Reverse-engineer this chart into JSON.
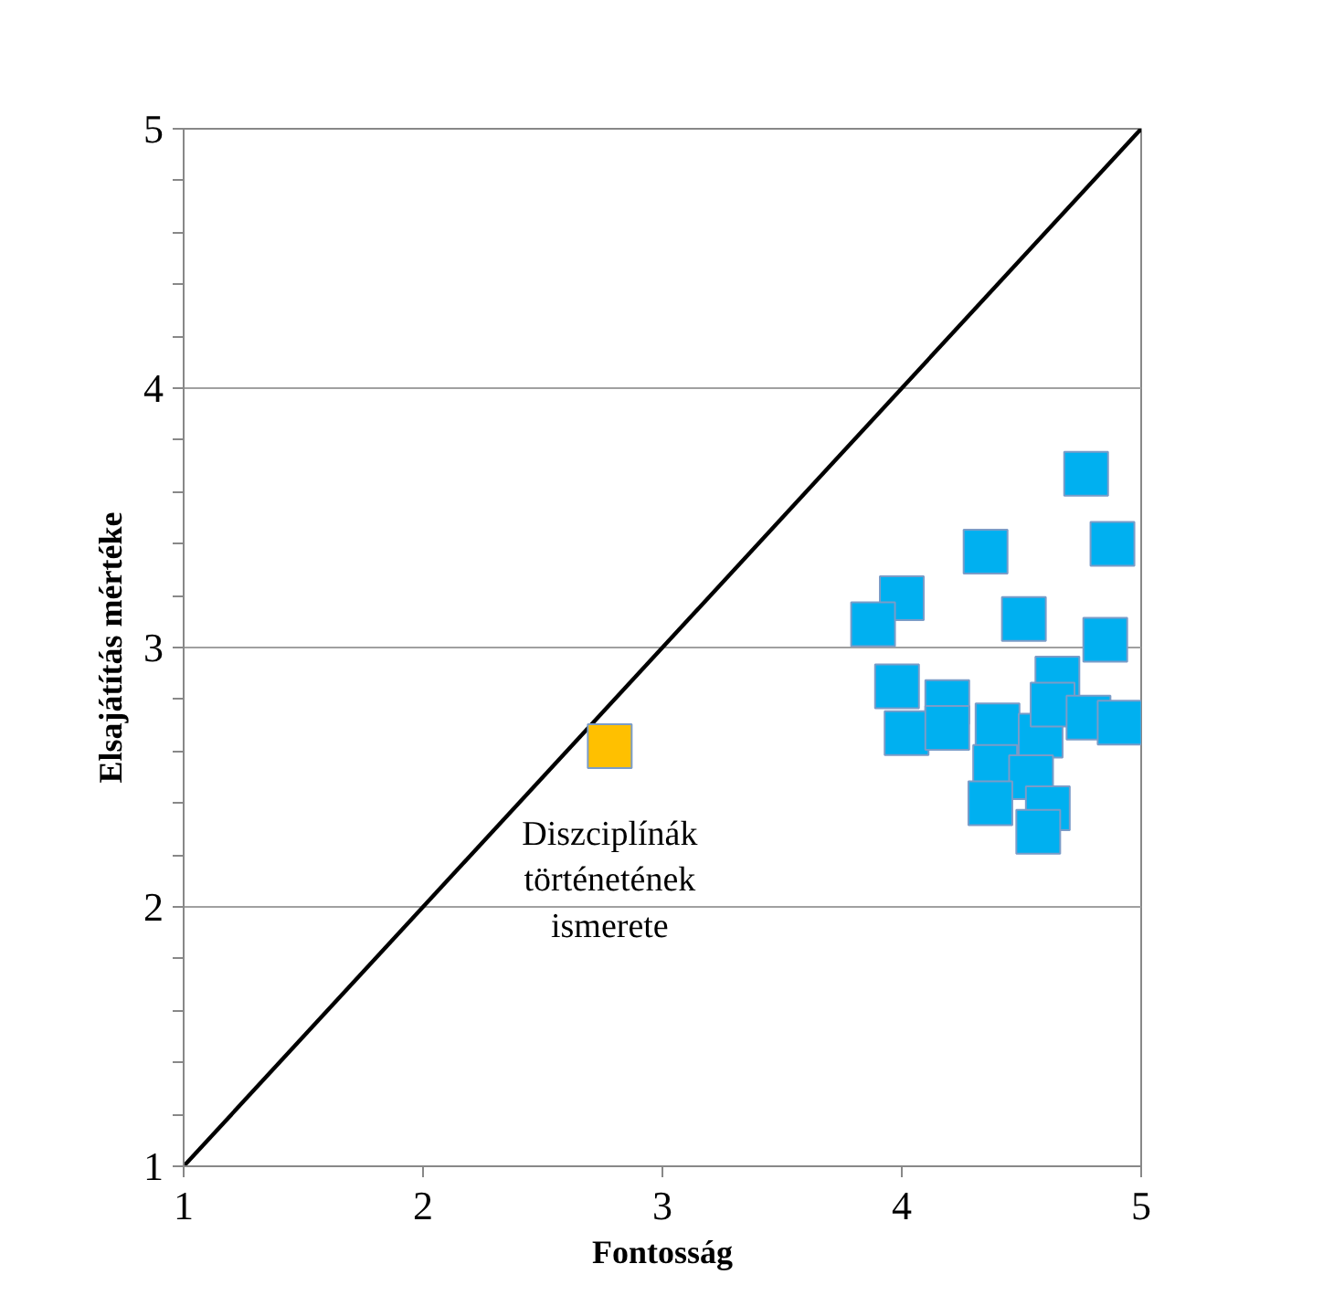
{
  "chart_data": {
    "type": "scatter",
    "xlabel": "Fontosság",
    "ylabel": "Elsajátítás mértéke",
    "xlim": [
      1,
      5
    ],
    "ylim": [
      1,
      5
    ],
    "xticks": [
      1,
      2,
      3,
      4,
      5
    ],
    "yticks": [
      1,
      {
        "value": 1.2,
        "label": null
      },
      {
        "value": 1.4,
        "label": null
      },
      {
        "value": 1.6,
        "label": null
      },
      {
        "value": 1.8,
        "label": null
      },
      2,
      {
        "value": 2.2,
        "label": null
      },
      {
        "value": 2.4,
        "label": null
      },
      {
        "value": 2.6,
        "label": null
      },
      {
        "value": 2.8,
        "label": null
      },
      3,
      {
        "value": 3.2,
        "label": null
      },
      {
        "value": 3.4,
        "label": null
      },
      {
        "value": 3.6,
        "label": null
      },
      {
        "value": 3.8,
        "label": null
      },
      4,
      {
        "value": 4.2,
        "label": null
      },
      {
        "value": 4.4,
        "label": null
      },
      {
        "value": 4.6,
        "label": null
      },
      {
        "value": 4.8,
        "label": null
      },
      5
    ],
    "grid": "y",
    "marker": "square",
    "series": [
      {
        "type": "line",
        "color": "#000000",
        "x": [
          1,
          5
        ],
        "values": [
          1,
          5
        ],
        "marker": "none"
      },
      {
        "color": "#00b0f0",
        "x": [
          4.77,
          4.88,
          4.35,
          4.0,
          3.88,
          4.51,
          4.85,
          3.98,
          4.65,
          4.19,
          4.02,
          4.19,
          4.4,
          4.58,
          4.63,
          4.78,
          4.91,
          4.39,
          4.54,
          4.61,
          4.37,
          4.57
        ],
        "values": [
          3.67,
          3.4,
          3.37,
          3.19,
          3.09,
          3.11,
          3.03,
          2.85,
          2.88,
          2.79,
          2.67,
          2.69,
          2.7,
          2.66,
          2.78,
          2.73,
          2.71,
          2.54,
          2.5,
          2.38,
          2.4,
          2.29
        ]
      },
      {
        "color": "#ffc000",
        "x": [
          2.78
        ],
        "values": [
          2.62
        ]
      }
    ],
    "annotations": [
      {
        "text": "Diszciplínák\ntörténetének\nismerete",
        "x": 2.78,
        "y": 2.62
      }
    ]
  }
}
